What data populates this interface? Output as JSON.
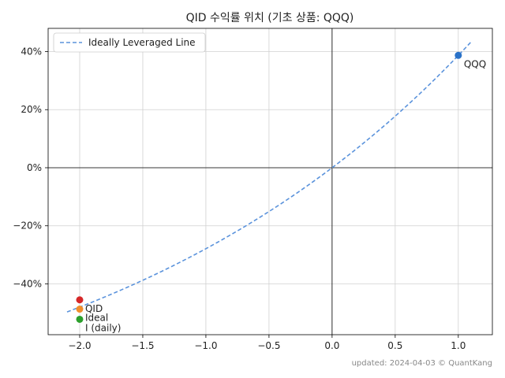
{
  "chart_data": {
    "type": "scatter",
    "title": "QID 수익률 위치 (기초 상품: QQQ)",
    "xlabel": "",
    "ylabel": "",
    "xlim": [
      -2.25,
      1.27
    ],
    "ylim": [
      -0.575,
      0.48
    ],
    "x_ticks": [
      -2.0,
      -1.5,
      -1.0,
      -0.5,
      0.0,
      0.5,
      1.0
    ],
    "x_tick_labels": [
      "−2.0",
      "−1.5",
      "−1.0",
      "−0.5",
      "0.0",
      "0.5",
      "1.0"
    ],
    "y_ticks": [
      0.4,
      0.2,
      0.0,
      -0.2,
      -0.4
    ],
    "y_tick_labels": [
      "40%",
      "20%",
      "0%",
      "−20%",
      "−40%"
    ],
    "grid": true,
    "legend": {
      "placement": "top-left",
      "entries": [
        "Ideally Leveraged Line"
      ]
    },
    "curve": {
      "name": "Ideally Leveraged Line",
      "style": "dashed",
      "color": "#5b93dc",
      "base_return": 0.3867,
      "x_range": [
        -2.1,
        1.1
      ]
    },
    "points": [
      {
        "label": "QQQ",
        "x": 1.0,
        "y": 0.387,
        "color": "#2a72c8"
      },
      {
        "label": "QID",
        "x": -2.0,
        "y": -0.455,
        "color": "#d62728"
      },
      {
        "label": "Ideal",
        "x": -2.0,
        "y": -0.487,
        "color": "#f28e2b"
      },
      {
        "label": "I (daily)",
        "x": -2.0,
        "y": -0.522,
        "color": "#2ca02c"
      }
    ],
    "footer": "updated: 2024-04-03 © QuantKang"
  }
}
